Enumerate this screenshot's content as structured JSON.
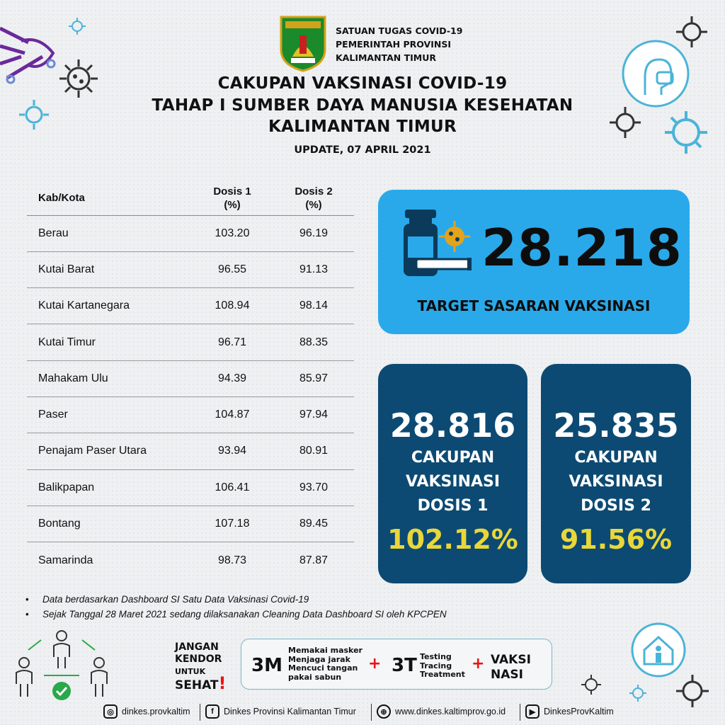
{
  "header": {
    "org_line1": "SATUAN TUGAS COVID-19",
    "org_line2": "PEMERINTAH PROVINSI",
    "org_line3": "KALIMANTAN TIMUR",
    "title_line1": "CAKUPAN VAKSINASI COVID-19",
    "title_line2": "TAHAP I SUMBER DAYA MANUSIA KESEHATAN",
    "title_line3": "KALIMANTAN TIMUR",
    "update": "UPDATE, 07 APRIL 2021"
  },
  "table": {
    "col_kab": "Kab/Kota",
    "col_d1_a": "Dosis 1",
    "col_d1_b": "(%)",
    "col_d2_a": "Dosis 2",
    "col_d2_b": "(%)",
    "rows": [
      {
        "kab": "Berau",
        "d1": "103.20",
        "d2": "96.19"
      },
      {
        "kab": "Kutai Barat",
        "d1": "96.55",
        "d2": "91.13"
      },
      {
        "kab": "Kutai Kartanegara",
        "d1": "108.94",
        "d2": "98.14"
      },
      {
        "kab": "Kutai Timur",
        "d1": "96.71",
        "d2": "88.35"
      },
      {
        "kab": "Mahakam Ulu",
        "d1": "94.39",
        "d2": "85.97"
      },
      {
        "kab": "Paser",
        "d1": "104.87",
        "d2": "97.94"
      },
      {
        "kab": "Penajam Paser Utara",
        "d1": "93.94",
        "d2": "80.91"
      },
      {
        "kab": "Balikpapan",
        "d1": "106.41",
        "d2": "93.70"
      },
      {
        "kab": "Bontang",
        "d1": "107.18",
        "d2": "89.45"
      },
      {
        "kab": "Samarinda",
        "d1": "98.73",
        "d2": "87.87"
      }
    ]
  },
  "target": {
    "number": "28.218",
    "label": "TARGET SASARAN VAKSINASI"
  },
  "dose1": {
    "number": "28.816",
    "line1": "CAKUPAN",
    "line2": "VAKSINASI",
    "line3": "DOSIS 1",
    "percent": "102.12%"
  },
  "dose2": {
    "number": "25.835",
    "line1": "CAKUPAN",
    "line2": "VAKSINASI",
    "line3": "DOSIS 2",
    "percent": "91.56%"
  },
  "notes": [
    "Data berdasarkan Dashboard SI Satu Data Vaksinasi Covid-19",
    "Sejak Tanggal 28 Maret 2021 sedang dilaksanakan Cleaning Data Dashboard SI oleh KPCPEN"
  ],
  "campaign": {
    "jangan": "JANGAN",
    "kendor": "KENDOR",
    "untuk": "UNTUK",
    "sehat": "SEHAT",
    "excl": "!",
    "m3": "3M",
    "m3_items": [
      "Memakai masker",
      "Menjaga jarak",
      "Mencuci tangan",
      "pakai sabun"
    ],
    "plus": "+",
    "t3": "3T",
    "t3_items": [
      "Testing",
      "Tracing",
      "Treatment"
    ],
    "vaksi_1": "VAKSI",
    "vaksi_2": "NASI"
  },
  "social": {
    "instagram": "dinkes.provkaltim",
    "facebook": "Dinkes Provinsi Kalimantan Timur",
    "website": "www.dinkes.kaltimprov.go.id",
    "youtube": "DinkesProvKaltim"
  },
  "colors": {
    "target_box": "#29a9ea",
    "dose_box": "#0c4a73",
    "percent": "#e9d73a",
    "accent_red": "#e11111"
  }
}
